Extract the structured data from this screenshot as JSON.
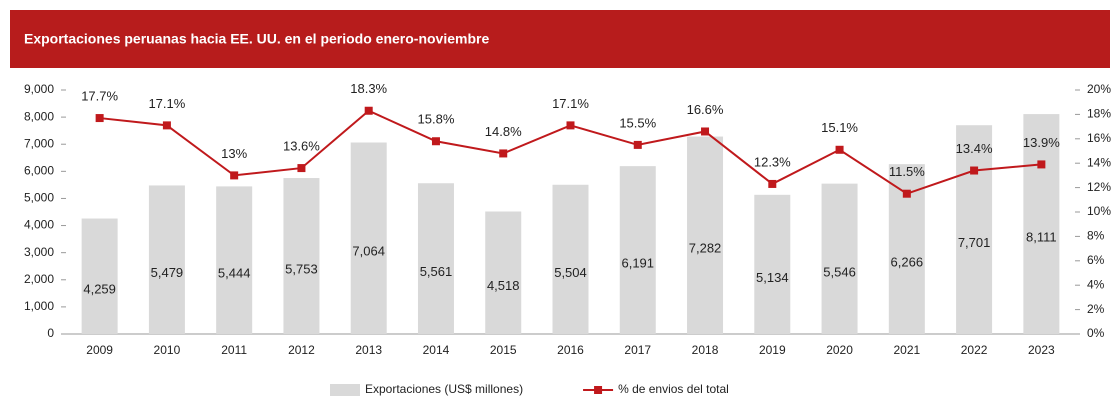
{
  "chart_data": {
    "type": "bar",
    "title": "Exportaciones peruanas hacia EE. UU. en el periodo enero-noviembre",
    "categories": [
      "2009",
      "2010",
      "2011",
      "2012",
      "2013",
      "2014",
      "2015",
      "2016",
      "2017",
      "2018",
      "2019",
      "2020",
      "2021",
      "2022",
      "2023"
    ],
    "series": [
      {
        "name": "Exportaciones (US$ millones)",
        "type": "bar",
        "color": "#d9d9d9",
        "values": [
          4259,
          5479,
          5444,
          5753,
          7064,
          5561,
          4518,
          5504,
          6191,
          7282,
          5134,
          5546,
          6266,
          7701,
          8111
        ],
        "value_labels": [
          "4,259",
          "5,479",
          "5,444",
          "5,753",
          "7,064",
          "5,561",
          "4,518",
          "5,504",
          "6,191",
          "7,282",
          "5,134",
          "5,546",
          "6,266",
          "7,701",
          "8,111"
        ]
      },
      {
        "name": "% de envios del total",
        "type": "line",
        "color": "#c0191c",
        "axis": "y2",
        "values": [
          17.7,
          17.1,
          13,
          13.6,
          18.3,
          15.8,
          14.8,
          17.1,
          15.5,
          16.6,
          12.3,
          15.1,
          11.5,
          13.4,
          13.9
        ],
        "value_labels": [
          "17.7%",
          "17.1%",
          "13%",
          "13.6%",
          "18.3%",
          "15.8%",
          "14.8%",
          "17.1%",
          "15.5%",
          "16.6%",
          "12.3%",
          "15.1%",
          "11.5%",
          "13.4%",
          "13.9%"
        ]
      }
    ],
    "ylim": [
      0,
      9000
    ],
    "yticks": [
      0,
      {
        "value": 1000,
        "label": "1,000"
      },
      {
        "value": 2000,
        "label": "2,000"
      },
      {
        "value": 3000,
        "label": "3,000"
      },
      {
        "value": 4000,
        "label": "4,000"
      },
      {
        "value": 5000,
        "label": "5,000"
      },
      {
        "value": 6000,
        "label": "6,000"
      },
      {
        "value": 7000,
        "label": "7,000"
      },
      {
        "value": 8000,
        "label": "8,000"
      },
      {
        "value": 9000,
        "label": "9,000"
      }
    ],
    "y2lim": [
      0,
      20
    ],
    "y2ticks": [
      {
        "value": 0,
        "label": "0%"
      },
      {
        "value": 2,
        "label": "2%"
      },
      {
        "value": 4,
        "label": "4%"
      },
      {
        "value": 6,
        "label": "6%"
      },
      {
        "value": 8,
        "label": "8%"
      },
      {
        "value": 10,
        "label": "10%"
      },
      {
        "value": 12,
        "label": "12%"
      },
      {
        "value": 14,
        "label": "14%"
      },
      {
        "value": 16,
        "label": "16%"
      },
      {
        "value": 18,
        "label": "18%"
      },
      {
        "value": 20,
        "label": "20%"
      }
    ],
    "grid": false,
    "legend": "bottom"
  }
}
